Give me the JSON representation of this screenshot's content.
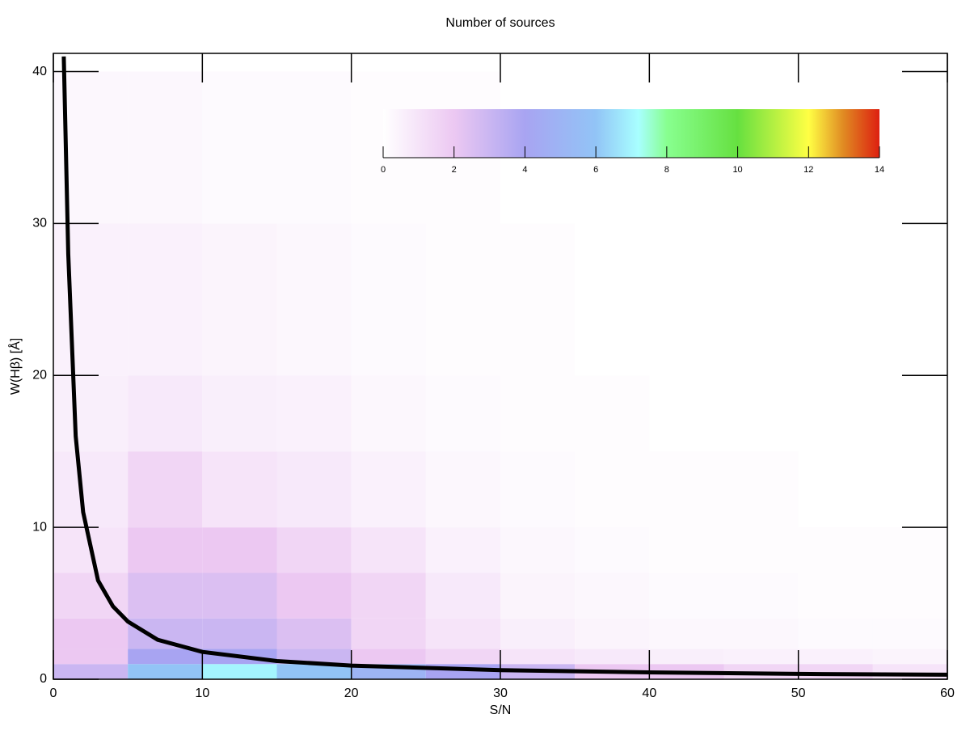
{
  "chart_data": {
    "type": "density_contour",
    "title": "Number of sources",
    "xlabel": "S/N",
    "ylabel": "W(Hβ) [Å]",
    "xlim": [
      0,
      60
    ],
    "ylim": [
      0,
      41.2
    ],
    "xticks": [
      0,
      10,
      20,
      30,
      40,
      50,
      60
    ],
    "yticks": [
      0,
      10,
      20,
      30,
      40
    ],
    "density": {
      "xbins": [
        0,
        5,
        10,
        15,
        20,
        25,
        30,
        35,
        40,
        45,
        50,
        55,
        60
      ],
      "ybins": [
        0,
        1,
        2,
        4,
        7,
        10,
        15,
        20,
        30,
        40
      ],
      "z": [
        [
          3,
          6,
          7,
          6,
          5,
          4,
          3,
          2,
          2,
          1.5,
          1.5,
          1
        ],
        [
          2,
          4,
          4,
          3,
          2,
          1.5,
          1,
          0.8,
          0.6,
          0.5,
          0.5,
          0.4
        ],
        [
          2,
          3,
          3,
          2.5,
          1.5,
          1,
          0.6,
          0.4,
          0.3,
          0.3,
          0.2,
          0.2
        ],
        [
          1.5,
          2.5,
          2.5,
          2,
          1.5,
          0.8,
          0.4,
          0.3,
          0.2,
          0.2,
          0.1,
          0.1
        ],
        [
          1,
          2,
          2,
          1.5,
          1,
          0.5,
          0.3,
          0.2,
          0.1,
          0.1,
          0.1,
          0.1
        ],
        [
          0.8,
          1.5,
          1,
          0.8,
          0.5,
          0.3,
          0.2,
          0.1,
          0.1,
          0.1,
          0,
          0
        ],
        [
          0.6,
          0.8,
          0.6,
          0.5,
          0.3,
          0.2,
          0.1,
          0.1,
          0,
          0,
          0,
          0
        ],
        [
          0.5,
          0.5,
          0.4,
          0.3,
          0.2,
          0.1,
          0.1,
          0,
          0,
          0,
          0,
          0
        ],
        [
          0.3,
          0.3,
          0.2,
          0.2,
          0.1,
          0.1,
          0,
          0,
          0,
          0,
          0,
          0
        ]
      ]
    },
    "curve": {
      "color": "#000000",
      "x": [
        0.7,
        1,
        1.5,
        2,
        3,
        4,
        5,
        7,
        10,
        15,
        20,
        30,
        40,
        50,
        60
      ],
      "values": [
        41,
        28,
        16,
        11,
        6.5,
        4.8,
        3.8,
        2.6,
        1.8,
        1.2,
        0.9,
        0.6,
        0.45,
        0.35,
        0.3
      ]
    },
    "colorbar": {
      "lim": [
        0,
        14
      ],
      "ticks": [
        0,
        2,
        4,
        6,
        8,
        10,
        12,
        14
      ],
      "colorscale": [
        {
          "value": 0,
          "color": "#ffffff"
        },
        {
          "value": 2,
          "color": "#ecc8f2"
        },
        {
          "value": 4,
          "color": "#a8a4f2"
        },
        {
          "value": 6,
          "color": "#92c4f6"
        },
        {
          "value": 7.2,
          "color": "#a8ffff"
        },
        {
          "value": 8,
          "color": "#88ff90"
        },
        {
          "value": 10,
          "color": "#66e040"
        },
        {
          "value": 12,
          "color": "#ffff44"
        },
        {
          "value": 13,
          "color": "#e08822"
        },
        {
          "value": 14,
          "color": "#dd2010"
        }
      ]
    }
  }
}
